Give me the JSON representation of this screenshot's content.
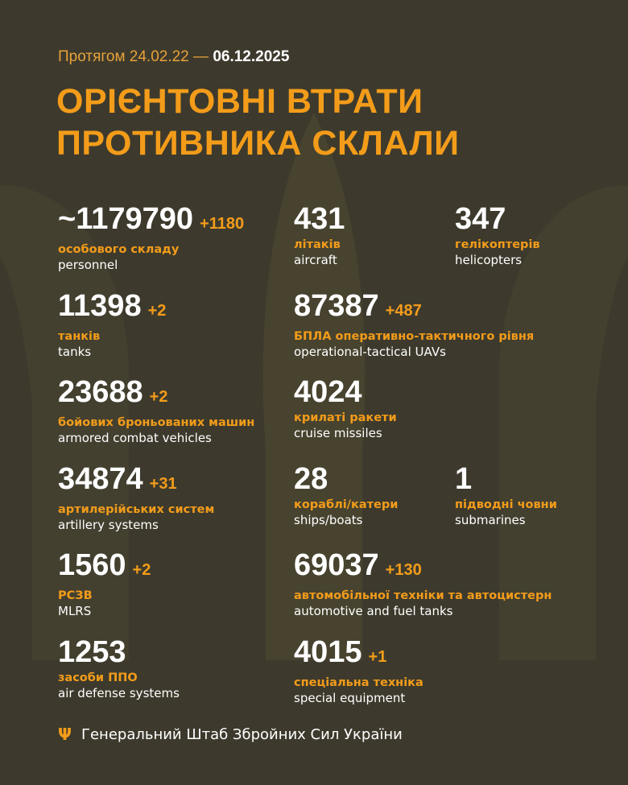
{
  "period": {
    "prefix": "Протягом 24.02.22 —",
    "date": "06.12.2025"
  },
  "title": {
    "line1": "ОРІЄНТОВНІ ВТРАТИ",
    "line2": "ПРОТИВНИКА СКЛАЛИ"
  },
  "stats": [
    {
      "value": "~1179790",
      "delta": "+1180",
      "ua": "особового складу",
      "en": "personnel"
    },
    {
      "value": "431",
      "delta": "",
      "ua": "літаків",
      "en": "aircraft"
    },
    {
      "value": "347",
      "delta": "",
      "ua": "гелікоптерів",
      "en": "helicopters"
    },
    {
      "value": "11398",
      "delta": "+2",
      "ua": "танків",
      "en": "tanks"
    },
    {
      "value": "87387",
      "delta": "+487",
      "ua": "БПЛА оперативно-тактичного рівня",
      "en": "operational-tactical UAVs"
    },
    {
      "value": "23688",
      "delta": "+2",
      "ua": "бойових броньованих машин",
      "en": "armored combat vehicles"
    },
    {
      "value": "4024",
      "delta": "",
      "ua": "крилаті ракети",
      "en": "cruise missiles"
    },
    {
      "value": "34874",
      "delta": "+31",
      "ua": "артилерійських систем",
      "en": "artillery systems"
    },
    {
      "value": "28",
      "delta": "",
      "ua": "кораблі/катери",
      "en": "ships/boats"
    },
    {
      "value": "1",
      "delta": "",
      "ua": "підводні човни",
      "en": "submarines"
    },
    {
      "value": "1560",
      "delta": "+2",
      "ua": "РСЗВ",
      "en": "MLRS"
    },
    {
      "value": "69037",
      "delta": "+130",
      "ua": "автомобільної техніки та автоцистерн",
      "en": "automotive and fuel tanks"
    },
    {
      "value": "1253",
      "delta": "",
      "ua": "засоби ППО",
      "en": "air defense systems"
    },
    {
      "value": "4015",
      "delta": "+1",
      "ua": "спеціальна техніка",
      "en": "special equipment"
    }
  ],
  "footer": {
    "icon": "trident-icon",
    "text": "Генеральний Штаб Збройних Сил України"
  },
  "colors": {
    "background": "#3d3a2d",
    "accent": "#f39c1a"
  }
}
